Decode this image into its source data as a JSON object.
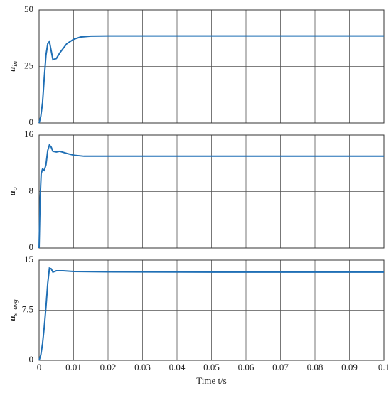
{
  "chart_data": [
    {
      "type": "line",
      "ylabel": "u",
      "ylabel_sub": "in",
      "x": [
        0,
        0.0005,
        0.001,
        0.0015,
        0.002,
        0.0025,
        0.003,
        0.0035,
        0.004,
        0.005,
        0.006,
        0.008,
        0.01,
        0.012,
        0.015,
        0.02,
        0.03,
        0.05,
        0.07,
        0.1
      ],
      "series": [
        {
          "color": "#1f6fb5",
          "values": [
            0,
            3,
            9,
            20,
            30,
            35,
            36,
            32,
            28,
            28.5,
            31,
            35,
            37,
            38,
            38.4,
            38.5,
            38.5,
            38.5,
            38.5,
            38.5
          ]
        }
      ],
      "xlim": [
        0,
        0.1
      ],
      "xticks": [
        0,
        0.01,
        0.02,
        0.03,
        0.04,
        0.05,
        0.06,
        0.07,
        0.08,
        0.09,
        0.1
      ],
      "ylim": [
        0,
        50
      ],
      "yticks": [
        0,
        25,
        50
      ],
      "grid": true
    },
    {
      "type": "line",
      "ylabel": "u",
      "ylabel_sub": "o",
      "x": [
        0,
        0.0003,
        0.0006,
        0.001,
        0.0015,
        0.002,
        0.0025,
        0.003,
        0.0035,
        0.004,
        0.005,
        0.006,
        0.008,
        0.01,
        0.013,
        0.02,
        0.05,
        0.1
      ],
      "series": [
        {
          "color": "#1f6fb5",
          "values": [
            0,
            7,
            10.5,
            11.2,
            11,
            11.8,
            13.8,
            14.6,
            14.3,
            13.7,
            13.6,
            13.7,
            13.4,
            13.15,
            13,
            13,
            13,
            13
          ]
        }
      ],
      "xlim": [
        0,
        0.1
      ],
      "xticks": [
        0,
        0.01,
        0.02,
        0.03,
        0.04,
        0.05,
        0.06,
        0.07,
        0.08,
        0.09,
        0.1
      ],
      "ylim": [
        0,
        16
      ],
      "yticks": [
        0,
        8,
        16
      ],
      "grid": true
    },
    {
      "type": "line",
      "ylabel": "u",
      "ylabel_sub": "s_avg",
      "xlabel": "Time t/s",
      "x": [
        0,
        0.0005,
        0.001,
        0.0015,
        0.002,
        0.0025,
        0.003,
        0.0035,
        0.004,
        0.005,
        0.007,
        0.01,
        0.02,
        0.05,
        0.1
      ],
      "series": [
        {
          "color": "#1f6fb5",
          "values": [
            0,
            0.8,
            2.5,
            5,
            8,
            11.5,
            13.8,
            13.7,
            13.2,
            13.4,
            13.4,
            13.3,
            13.25,
            13.2,
            13.2
          ]
        }
      ],
      "xlim": [
        0,
        0.1
      ],
      "xticks": [
        0,
        0.01,
        0.02,
        0.03,
        0.04,
        0.05,
        0.06,
        0.07,
        0.08,
        0.09,
        0.1
      ],
      "ylim": [
        0,
        15
      ],
      "yticks": [
        0,
        7.5,
        15
      ],
      "grid": true
    }
  ]
}
